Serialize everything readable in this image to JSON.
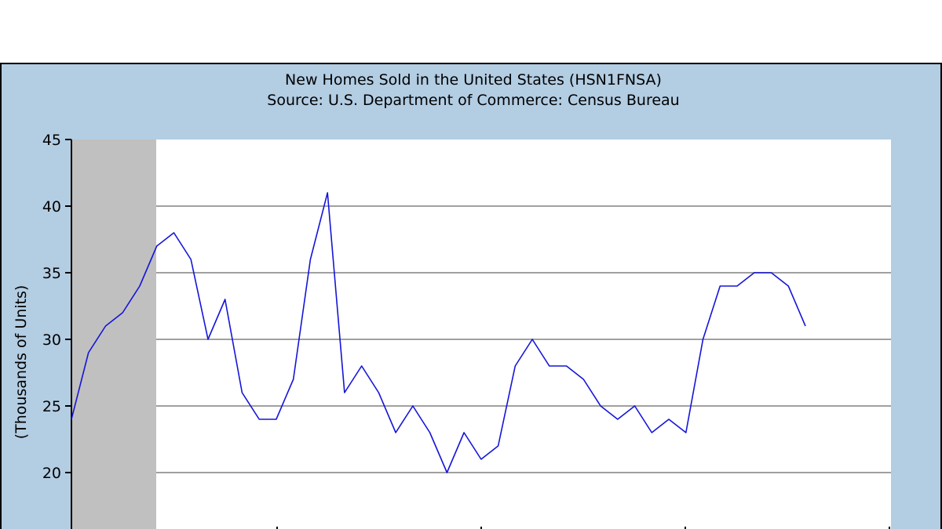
{
  "chart_data": {
    "type": "line",
    "title": "New Homes Sold in the United States (HSN1FNSA)",
    "subtitle": "Source: U.S. Department of Commerce: Census Bureau",
    "ylabel": "(Thousands of Units)",
    "xlabel": "",
    "ylim": [
      15,
      45
    ],
    "yticks": [
      20,
      25,
      30,
      35,
      40,
      45
    ],
    "grid": true,
    "recession_shading": true,
    "colors": {
      "frame": "#b3cde3",
      "plot_bg": "#ffffff",
      "recession": "#c0c0c0",
      "grid": "#a0a0a0",
      "line": "#1515d8"
    },
    "series": [
      {
        "values": [
          24,
          29,
          31,
          32,
          34,
          37,
          38,
          36,
          30,
          33,
          26,
          24,
          24,
          27,
          36,
          41,
          26,
          28,
          26,
          23,
          25,
          23,
          20,
          23,
          21,
          22,
          28,
          30,
          28,
          28,
          27,
          25,
          24,
          25,
          23,
          24,
          23,
          30,
          34,
          34,
          35,
          35,
          34,
          31
        ]
      }
    ]
  }
}
